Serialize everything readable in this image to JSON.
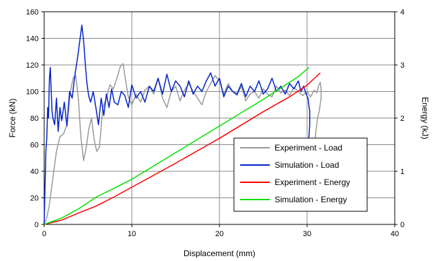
{
  "chart_data": {
    "type": "line",
    "xlabel": "Displacement (mm)",
    "ylabel": "Force (kN)",
    "y2label": "Energy (kJ)",
    "xlim": [
      0,
      40
    ],
    "ylim": [
      0,
      160
    ],
    "y2lim": [
      0,
      4
    ],
    "xticks": [
      "0",
      "10",
      "20",
      "30",
      "40"
    ],
    "yticks": [
      "0",
      "20",
      "40",
      "60",
      "80",
      "100",
      "120",
      "140",
      "160"
    ],
    "y2ticks": [
      "0",
      "1",
      "2",
      "3",
      "4"
    ],
    "grid": true,
    "legend_position": "bottom-right",
    "series": [
      {
        "name": "Experiment - Load",
        "axis": "left",
        "color": "#999999",
        "x": [
          0,
          0.3,
          0.6,
          1.0,
          1.4,
          1.8,
          2.2,
          2.6,
          3.0,
          3.3,
          3.6,
          3.9,
          4.2,
          4.5,
          4.8,
          5.1,
          5.4,
          5.7,
          6.0,
          6.3,
          6.7,
          7.1,
          7.5,
          7.9,
          8.3,
          8.7,
          9.0,
          9.3,
          9.6,
          10.0,
          10.5,
          11.0,
          11.5,
          12.0,
          12.5,
          13.0,
          13.5,
          14.0,
          14.5,
          15.0,
          15.5,
          16.0,
          16.5,
          17.0,
          17.5,
          18.0,
          18.5,
          19.0,
          19.5,
          20.0,
          20.5,
          21.0,
          21.5,
          22.0,
          22.5,
          23.0,
          23.5,
          24.0,
          24.5,
          25.0,
          25.5,
          26.0,
          26.5,
          27.0,
          27.5,
          28.0,
          28.5,
          29.0,
          29.5,
          30.0,
          30.4,
          30.8,
          31.1,
          31.3,
          31.5,
          31.6,
          31.6,
          31.4,
          31.2,
          31.0,
          30.9,
          30.8
        ],
        "values": [
          0,
          5,
          15,
          35,
          55,
          66,
          68,
          75,
          100,
          110,
          112,
          95,
          65,
          48,
          58,
          72,
          80,
          64,
          55,
          58,
          88,
          95,
          105,
          102,
          110,
          119,
          121,
          108,
          96,
          90,
          98,
          92,
          101,
          104,
          98,
          110,
          95,
          88,
          100,
          104,
          93,
          101,
          106,
          100,
          95,
          90,
          100,
          106,
          112,
          108,
          98,
          106,
          100,
          97,
          104,
          93,
          98,
          100,
          95,
          102,
          98,
          96,
          104,
          99,
          101,
          97,
          103,
          100,
          97,
          100,
          96,
          101,
          99,
          104,
          107,
          102,
          95,
          86,
          80,
          70,
          60,
          55
        ]
      },
      {
        "name": "Simulation - Load",
        "axis": "left",
        "color": "#0022cc",
        "x": [
          0,
          0.1,
          0.2,
          0.3,
          0.4,
          0.5,
          0.6,
          0.7,
          0.8,
          0.9,
          1.0,
          1.2,
          1.4,
          1.6,
          1.8,
          2.0,
          2.3,
          2.6,
          2.9,
          3.2,
          3.5,
          3.8,
          4.1,
          4.3,
          4.5,
          4.7,
          4.9,
          5.1,
          5.3,
          5.6,
          5.9,
          6.2,
          6.5,
          6.8,
          7.1,
          7.4,
          7.7,
          8.0,
          8.4,
          8.8,
          9.2,
          9.6,
          10.0,
          10.5,
          11.0,
          11.5,
          12.0,
          12.5,
          13.0,
          13.5,
          14.0,
          14.5,
          15.0,
          15.5,
          16.0,
          16.5,
          17.0,
          17.5,
          18.0,
          18.5,
          19.0,
          19.5,
          20.0,
          20.5,
          21.0,
          21.5,
          22.0,
          22.5,
          23.0,
          23.5,
          24.0,
          24.5,
          25.0,
          25.5,
          26.0,
          26.5,
          27.0,
          27.5,
          28.0,
          28.5,
          29.0,
          29.3,
          29.6,
          29.9,
          30.1,
          30.2,
          30.3,
          30.3,
          30.2,
          30.1,
          30.0,
          29.9
        ],
        "values": [
          0,
          30,
          55,
          65,
          88,
          80,
          110,
          118,
          100,
          85,
          80,
          75,
          95,
          70,
          88,
          78,
          92,
          74,
          100,
          95,
          112,
          125,
          140,
          150,
          138,
          120,
          105,
          96,
          92,
          100,
          88,
          75,
          95,
          82,
          98,
          88,
          102,
          92,
          90,
          100,
          97,
          88,
          105,
          95,
          100,
          92,
          104,
          100,
          110,
          98,
          113,
          100,
          108,
          104,
          96,
          108,
          98,
          104,
          100,
          108,
          114,
          104,
          110,
          96,
          104,
          100,
          98,
          106,
          96,
          104,
          100,
          108,
          98,
          102,
          110,
          100,
          104,
          98,
          106,
          102,
          108,
          100,
          104,
          98,
          95,
          90,
          85,
          75,
          65,
          60,
          55,
          50
        ]
      },
      {
        "name": "Experiment - Energy",
        "axis": "right",
        "color": "#ff0000",
        "x": [
          0,
          2,
          4,
          6,
          8,
          10,
          15,
          20,
          25,
          28,
          30,
          31.5
        ],
        "values": [
          0,
          0.08,
          0.22,
          0.35,
          0.52,
          0.7,
          1.15,
          1.62,
          2.12,
          2.4,
          2.62,
          2.85
        ]
      },
      {
        "name": "Simulation - Energy",
        "axis": "right",
        "color": "#00e000",
        "x": [
          0,
          2,
          4,
          6,
          8,
          10,
          15,
          20,
          25,
          27.5,
          29,
          30.2
        ],
        "values": [
          0,
          0.12,
          0.3,
          0.52,
          0.68,
          0.85,
          1.35,
          1.85,
          2.35,
          2.62,
          2.78,
          2.95
        ]
      }
    ]
  }
}
